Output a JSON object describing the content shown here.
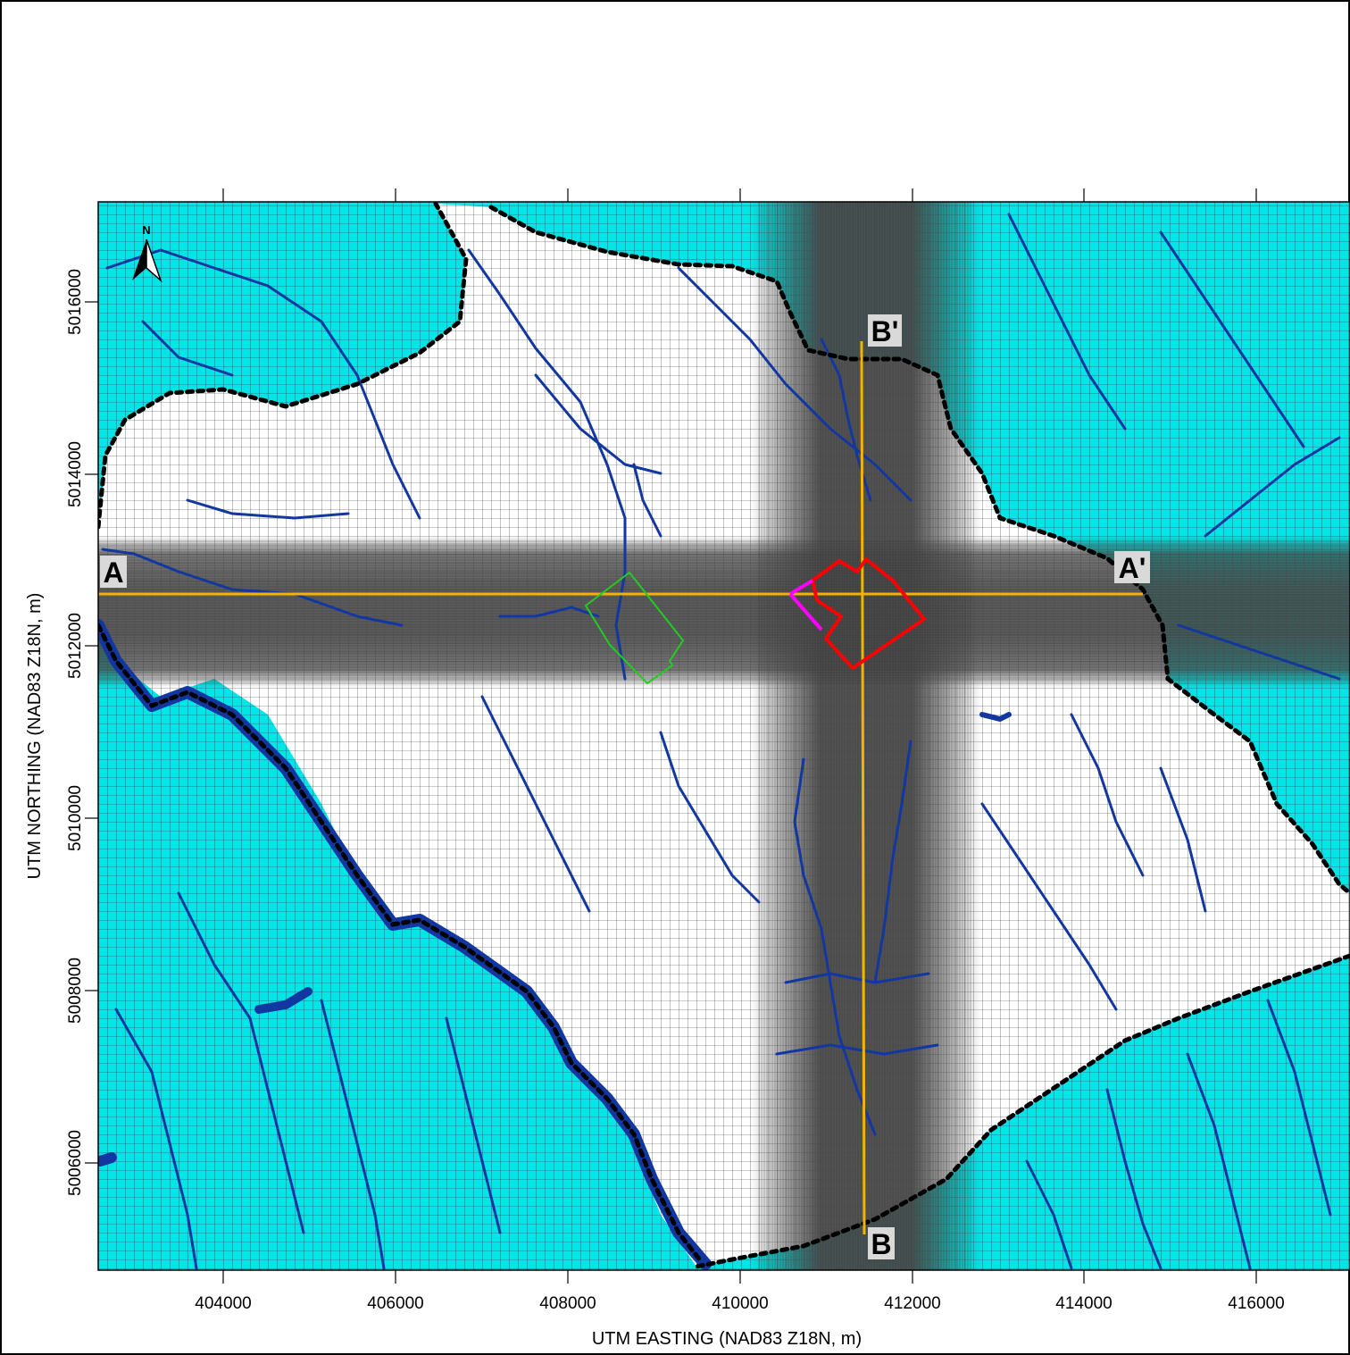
{
  "map": {
    "x_axis": {
      "label": "UTM EASTING (NAD83 Z18N, m)",
      "ticks": [
        "404000",
        "406000",
        "408000",
        "410000",
        "412000",
        "414000",
        "416000"
      ]
    },
    "y_axis": {
      "label": "UTM NORTHING (NAD83 Z18N, m)",
      "ticks": [
        "5016000",
        "5014000",
        "5012000",
        "5010000",
        "5008000",
        "5006000"
      ]
    },
    "north_arrow": "N",
    "section_labels": {
      "a": "A",
      "a_prime": "A'",
      "b": "B",
      "b_prime": "B'"
    },
    "colors": {
      "inactive_cells": "#00e5e5",
      "active_cells": "#ffffff",
      "grid_lines": "#333333",
      "refined_grid": "#3a3a3a",
      "streams": "#1237a0",
      "model_boundary": "#000000",
      "cross_sections": "#f2b400",
      "site_outline": "#ff0000",
      "site_segment": "#ff00ff",
      "secondary_site": "#22cc22",
      "label_box": "#d9d9d9"
    }
  }
}
